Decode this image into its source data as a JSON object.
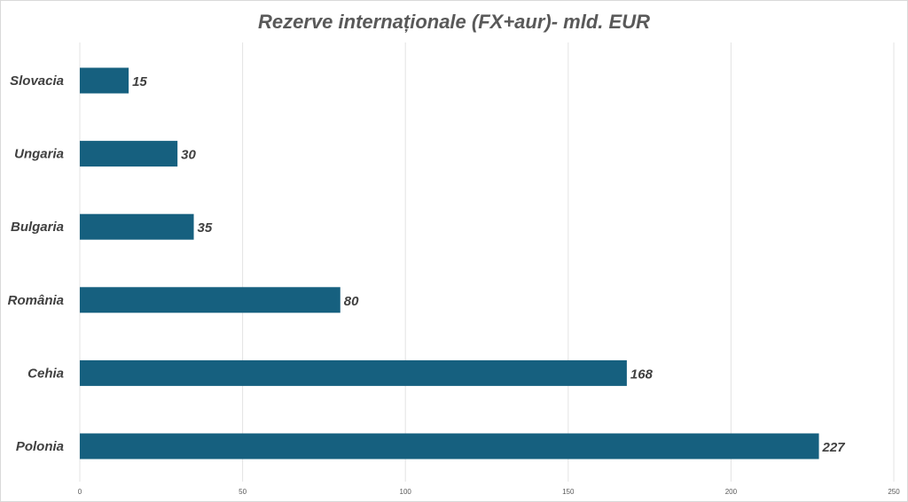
{
  "chart_data": {
    "type": "bar",
    "orientation": "horizontal",
    "title": "Rezerve internaționale (FX+aur)- mld. EUR",
    "categories": [
      "Slovacia",
      "Ungaria",
      "Bulgaria",
      "România",
      "Cehia",
      "Polonia"
    ],
    "values": [
      15,
      30,
      35,
      80,
      168,
      227
    ],
    "data_labels": [
      "15",
      "30",
      "35",
      "80",
      "168",
      "227"
    ],
    "x_ticks": [
      0,
      50,
      100,
      150,
      200,
      250
    ],
    "xlim": [
      0,
      250
    ],
    "grid": true,
    "legend": "none",
    "bar_color": "#16607f",
    "grid_color": "#e3e3e3"
  }
}
